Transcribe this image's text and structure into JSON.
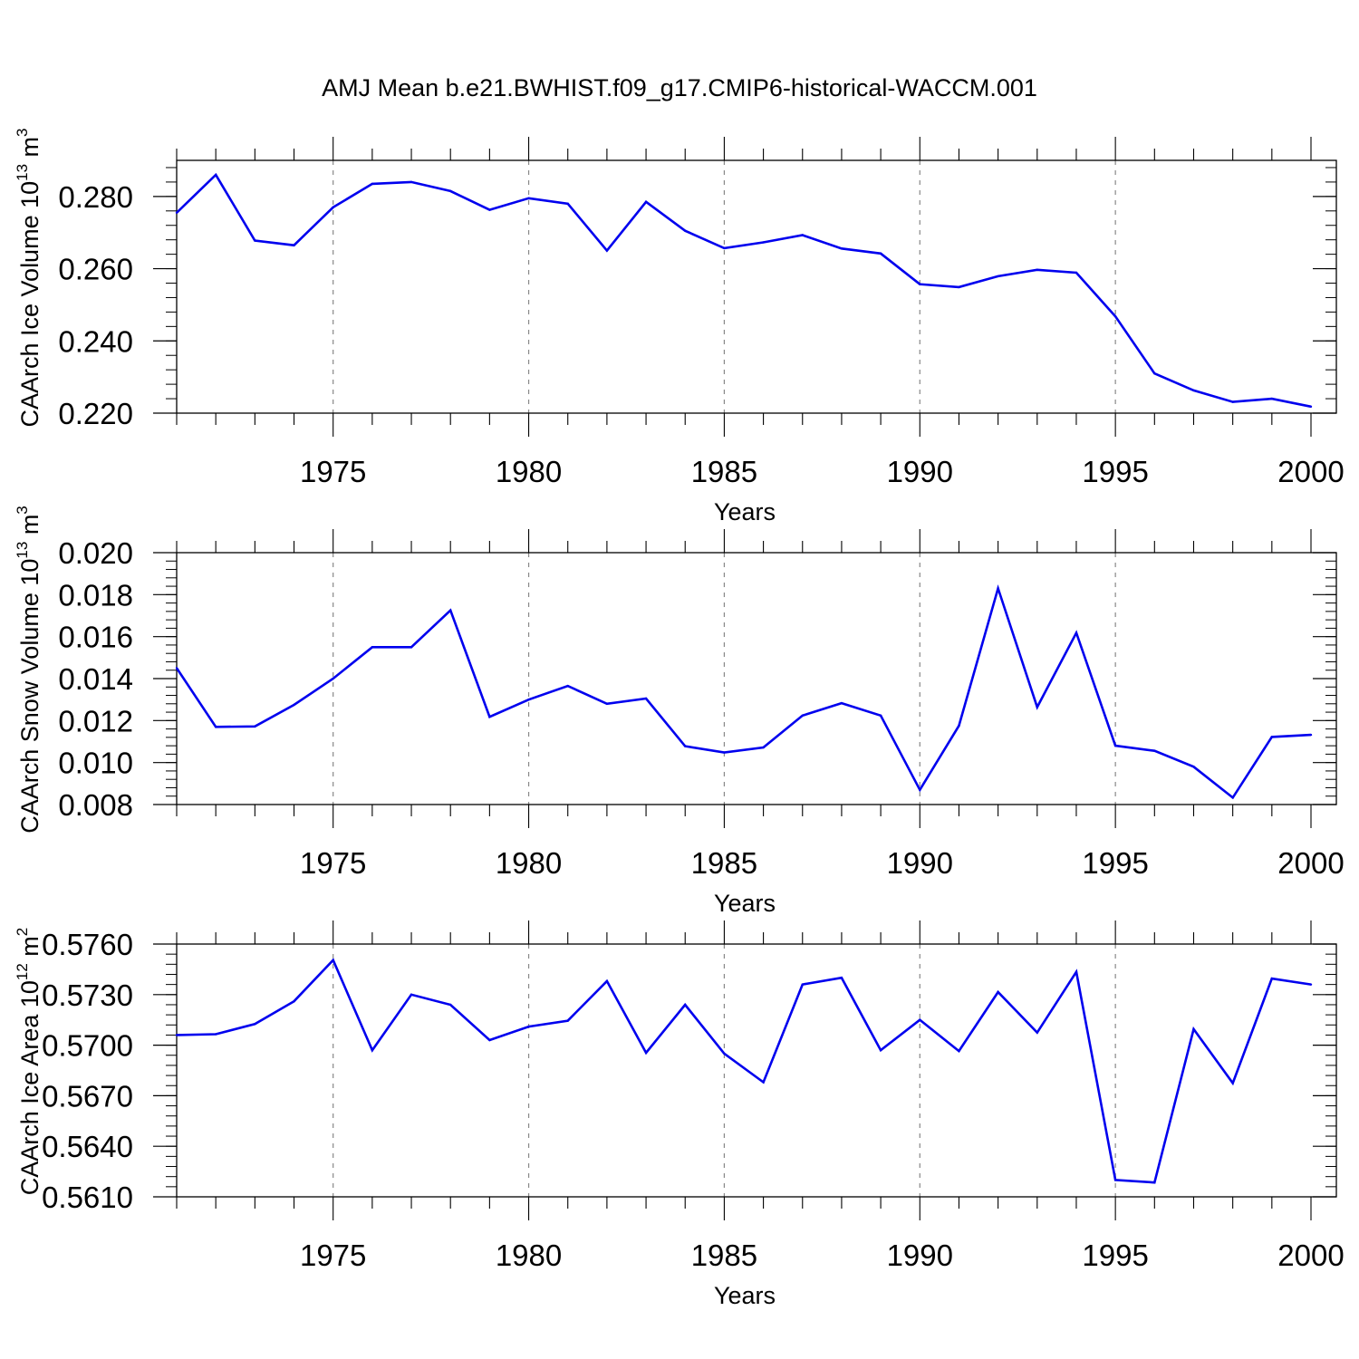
{
  "title": "AMJ Mean b.e21.BWHIST.f09_g17.CMIP6-historical-WACCM.001",
  "colors": {
    "line": "#0000ee",
    "axis": "#000000",
    "grid": "#888888"
  },
  "chart_data": [
    {
      "type": "line",
      "ylabel_main": "CAArch Ice Volume 10",
      "ylabel_exp": "13",
      "ylabel_unit": "m",
      "ylabel_unit_exp": "3",
      "xlabel": "Years",
      "xlim": [
        1971,
        2000
      ],
      "ylim": [
        0.22,
        0.29
      ],
      "xticks": [
        1975,
        1980,
        1985,
        1990,
        1995,
        2000
      ],
      "xtick_labels": [
        "1975",
        "1980",
        "1985",
        "1990",
        "1995",
        "2000"
      ],
      "yticks": [
        0.22,
        0.24,
        0.26,
        0.28
      ],
      "ytick_labels": [
        "0.220",
        "0.240",
        "0.260",
        "0.280"
      ],
      "yminor_step": 0.004,
      "x": [
        1971,
        1972,
        1973,
        1974,
        1975,
        1976,
        1977,
        1978,
        1979,
        1980,
        1981,
        1982,
        1983,
        1984,
        1985,
        1986,
        1987,
        1988,
        1989,
        1990,
        1991,
        1992,
        1993,
        1994,
        1995,
        1996,
        1997,
        1998,
        1999,
        2000
      ],
      "values": [
        0.2755,
        0.286,
        0.2678,
        0.2665,
        0.277,
        0.2835,
        0.284,
        0.2815,
        0.2763,
        0.2795,
        0.278,
        0.265,
        0.2785,
        0.2705,
        0.2657,
        0.2673,
        0.2693,
        0.2656,
        0.2642,
        0.2557,
        0.2549,
        0.2579,
        0.2597,
        0.2589,
        0.2468,
        0.231,
        0.2263,
        0.2231,
        0.224,
        0.2218
      ]
    },
    {
      "type": "line",
      "ylabel_main": "CAArch Snow Volume 10",
      "ylabel_exp": "13",
      "ylabel_unit": "m",
      "ylabel_unit_exp": "3",
      "xlabel": "Years",
      "xlim": [
        1971,
        2000
      ],
      "ylim": [
        0.008,
        0.02
      ],
      "xticks": [
        1975,
        1980,
        1985,
        1990,
        1995,
        2000
      ],
      "xtick_labels": [
        "1975",
        "1980",
        "1985",
        "1990",
        "1995",
        "2000"
      ],
      "yticks": [
        0.008,
        0.01,
        0.012,
        0.014,
        0.016,
        0.018,
        0.02
      ],
      "ytick_labels": [
        "0.008",
        "0.010",
        "0.012",
        "0.014",
        "0.016",
        "0.018",
        "0.020"
      ],
      "yminor_step": 0.0004,
      "x": [
        1971,
        1972,
        1973,
        1974,
        1975,
        1976,
        1977,
        1978,
        1979,
        1980,
        1981,
        1982,
        1983,
        1984,
        1985,
        1986,
        1987,
        1988,
        1989,
        1990,
        1991,
        1992,
        1993,
        1994,
        1995,
        1996,
        1997,
        1998,
        1999,
        2000
      ],
      "values": [
        0.0145,
        0.0117,
        0.01172,
        0.01275,
        0.014,
        0.0155,
        0.0155,
        0.01725,
        0.01218,
        0.013,
        0.01365,
        0.0128,
        0.01305,
        0.01078,
        0.01048,
        0.01072,
        0.01224,
        0.01283,
        0.01224,
        0.0087,
        0.01175,
        0.0183,
        0.01264,
        0.01618,
        0.0108,
        0.01056,
        0.0098,
        0.00833,
        0.01122,
        0.01132
      ]
    },
    {
      "type": "line",
      "ylabel_main": "CAArch Ice Area 10",
      "ylabel_exp": "12",
      "ylabel_unit": "m",
      "ylabel_unit_exp": "2",
      "xlabel": "Years",
      "xlim": [
        1971,
        2000
      ],
      "ylim": [
        0.561,
        0.576
      ],
      "xticks": [
        1975,
        1980,
        1985,
        1990,
        1995,
        2000
      ],
      "xtick_labels": [
        "1975",
        "1980",
        "1985",
        "1990",
        "1995",
        "2000"
      ],
      "yticks": [
        0.561,
        0.564,
        0.567,
        0.57,
        0.573,
        0.576
      ],
      "ytick_labels": [
        "0.5610",
        "0.5640",
        "0.5670",
        "0.5700",
        "0.5730",
        "0.5760"
      ],
      "yminor_step": 0.0006,
      "x": [
        1971,
        1972,
        1973,
        1974,
        1975,
        1976,
        1977,
        1978,
        1979,
        1980,
        1981,
        1982,
        1983,
        1984,
        1985,
        1986,
        1987,
        1988,
        1989,
        1990,
        1991,
        1992,
        1993,
        1994,
        1995,
        1996,
        1997,
        1998,
        1999,
        2000
      ],
      "values": [
        0.5706,
        0.57065,
        0.57125,
        0.5726,
        0.57505,
        0.5697,
        0.573,
        0.5724,
        0.5703,
        0.5711,
        0.57145,
        0.5738,
        0.56955,
        0.5724,
        0.5695,
        0.5678,
        0.5736,
        0.574,
        0.5697,
        0.5715,
        0.56965,
        0.57315,
        0.57075,
        0.57435,
        0.562,
        0.56185,
        0.57095,
        0.56775,
        0.57395,
        0.5736
      ]
    }
  ]
}
